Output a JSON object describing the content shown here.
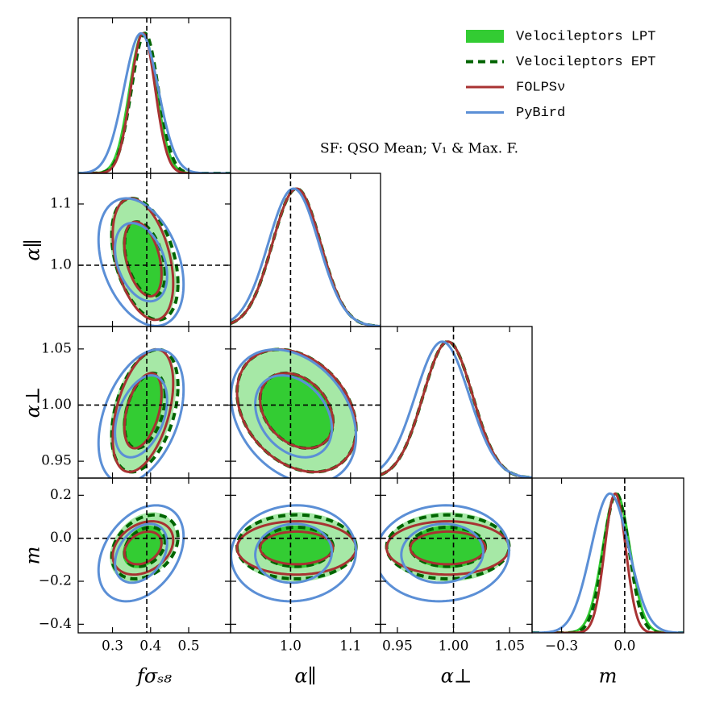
{
  "chart_data": {
    "type": "corner",
    "annotation": "SF: QSO Mean; V₁ & Max. F.",
    "parameters": [
      {
        "label": "fσₛ₈",
        "lim": [
          0.21,
          0.61
        ],
        "truth": 0.39,
        "xticks": [
          0.3,
          0.4,
          0.5
        ],
        "yticks": []
      },
      {
        "label": "α∥",
        "lim": [
          0.9,
          1.15
        ],
        "truth": 1.0,
        "xticks": [
          {
            "value": 1.0,
            "label": "1.0"
          },
          1.1
        ],
        "yticks": [
          {
            "value": 1.0,
            "label": "1.0"
          },
          1.1
        ]
      },
      {
        "label": "α⊥",
        "lim": [
          0.935,
          1.07
        ],
        "truth": 1.0,
        "xticks": [
          0.95,
          {
            "value": 1.0,
            "label": "1.00"
          },
          1.05
        ],
        "yticks": [
          0.95,
          {
            "value": 1.0,
            "label": "1.00"
          },
          1.05
        ]
      },
      {
        "label": "m",
        "lim": [
          -0.44,
          0.28
        ],
        "truth": 0.0,
        "xticks": [
          {
            "value": -0.3,
            "label": "−0.3"
          },
          {
            "value": 0.0,
            "label": "0.0"
          }
        ],
        "yticks": [
          {
            "value": -0.4,
            "label": "−0.4"
          },
          {
            "value": -0.2,
            "label": "−0.2"
          },
          {
            "value": 0.0,
            "label": "0.0"
          },
          0.2
        ]
      }
    ],
    "series": [
      {
        "name": "Velocileptors LPT",
        "color": "#33cc33",
        "style": "fill",
        "means": [
          0.38,
          1.01,
          0.995,
          -0.04
        ],
        "sigmas": [
          0.035,
          0.04,
          0.022,
          0.065
        ],
        "corr": [
          [
            -0.4
          ],
          [
            0.4,
            -0.3
          ],
          [
            0.3,
            0.0,
            0.0
          ]
        ]
      },
      {
        "name": "Velocileptors EPT",
        "color": "#006400",
        "style": "dashed",
        "means": [
          0.385,
          1.01,
          0.995,
          -0.04
        ],
        "sigmas": [
          0.035,
          0.04,
          0.022,
          0.06
        ],
        "corr": [
          [
            -0.4
          ],
          [
            0.4,
            -0.3
          ],
          [
            0.3,
            0.0,
            0.0
          ]
        ]
      },
      {
        "name": "FOLPSν",
        "color": "#a83232",
        "style": "solid",
        "means": [
          0.38,
          1.01,
          0.995,
          -0.045
        ],
        "sigmas": [
          0.032,
          0.04,
          0.022,
          0.05
        ],
        "corr": [
          [
            -0.4
          ],
          [
            0.45,
            -0.3
          ],
          [
            0.3,
            0.0,
            0.0
          ]
        ]
      },
      {
        "name": "PyBird",
        "color": "#5b8fd6",
        "style": "solid",
        "means": [
          0.375,
          1.005,
          0.99,
          -0.07
        ],
        "sigmas": [
          0.045,
          0.042,
          0.024,
          0.09
        ],
        "corr": [
          [
            -0.35
          ],
          [
            0.4,
            -0.3
          ],
          [
            0.35,
            0.05,
            0.05
          ]
        ]
      }
    ]
  }
}
